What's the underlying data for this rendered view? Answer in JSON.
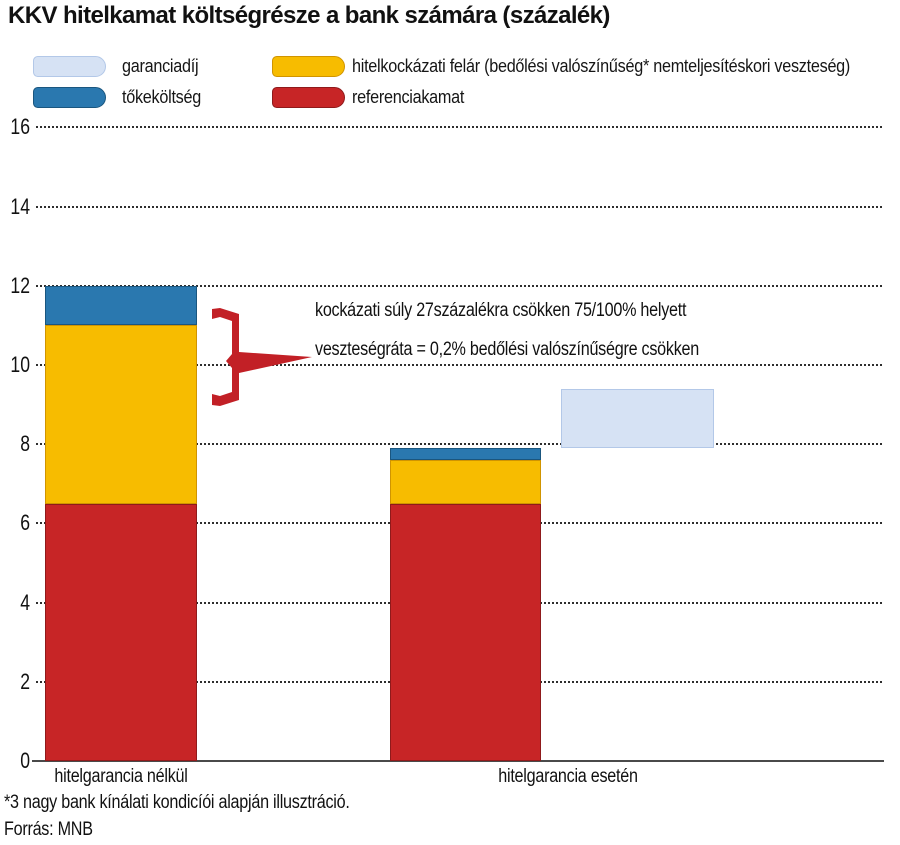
{
  "title": "KKV hitelkamat költségrésze a bank számára (százalék)",
  "legend": {
    "items": [
      {
        "label": "garanciadíj",
        "color": "#D6E2F4",
        "border": "#B3C8E8"
      },
      {
        "label": "tőkeköltség",
        "color": "#2A78AF",
        "border": "#1A567F"
      },
      {
        "label": "hitelkockázati felár (bedőlési valószínűség* nemteljesítéskori veszteség)",
        "color": "#F7BC00",
        "border": "#D09400"
      },
      {
        "label": "referenciakamat",
        "color": "#C72526",
        "border": "#8F1A1B"
      }
    ]
  },
  "annotations": {
    "line1": "kockázati súly 27százalékra csökken 75/100% helyett",
    "line2": "veszteségráta = 0,2% bedőlési valószínűségre csökken"
  },
  "footnote": "*3 nagy bank kínálati kondicíói alapján illusztráció.",
  "source": "Forrás: MNB",
  "yaxis_ticks": [
    16,
    14,
    12,
    10,
    8,
    6,
    4,
    2,
    0
  ],
  "brace_color": "#C22026",
  "chart_data": {
    "type": "bar",
    "stacked": true,
    "title": "KKV hitelkamat költségrésze a bank számára (százalék)",
    "categories": [
      "hitelgarancia nélkül",
      "hitelgarancia esetén"
    ],
    "series": [
      {
        "name": "referenciakamat",
        "color": "#C72526",
        "border": "#8F1A1B",
        "values": [
          6.5,
          6.5
        ]
      },
      {
        "name": "hitelkockázati felár",
        "color": "#F7BC00",
        "border": "#D09400",
        "values": [
          4.5,
          1.1
        ]
      },
      {
        "name": "tőkeköltség",
        "color": "#2A78AF",
        "border": "#1A567F",
        "values": [
          1.0,
          0.3
        ]
      },
      {
        "name": "garanciadíj",
        "color": "#D6E2F4",
        "border": "#B3C8E8",
        "values": [
          0,
          1.5
        ],
        "detached": true
      }
    ],
    "bar_totals": [
      12,
      9.4
    ],
    "ylim": [
      0,
      16
    ],
    "ytick_step": 2,
    "grid": "horizontal-dotted",
    "legend_position": "top",
    "xlabel": "",
    "ylabel": ""
  }
}
